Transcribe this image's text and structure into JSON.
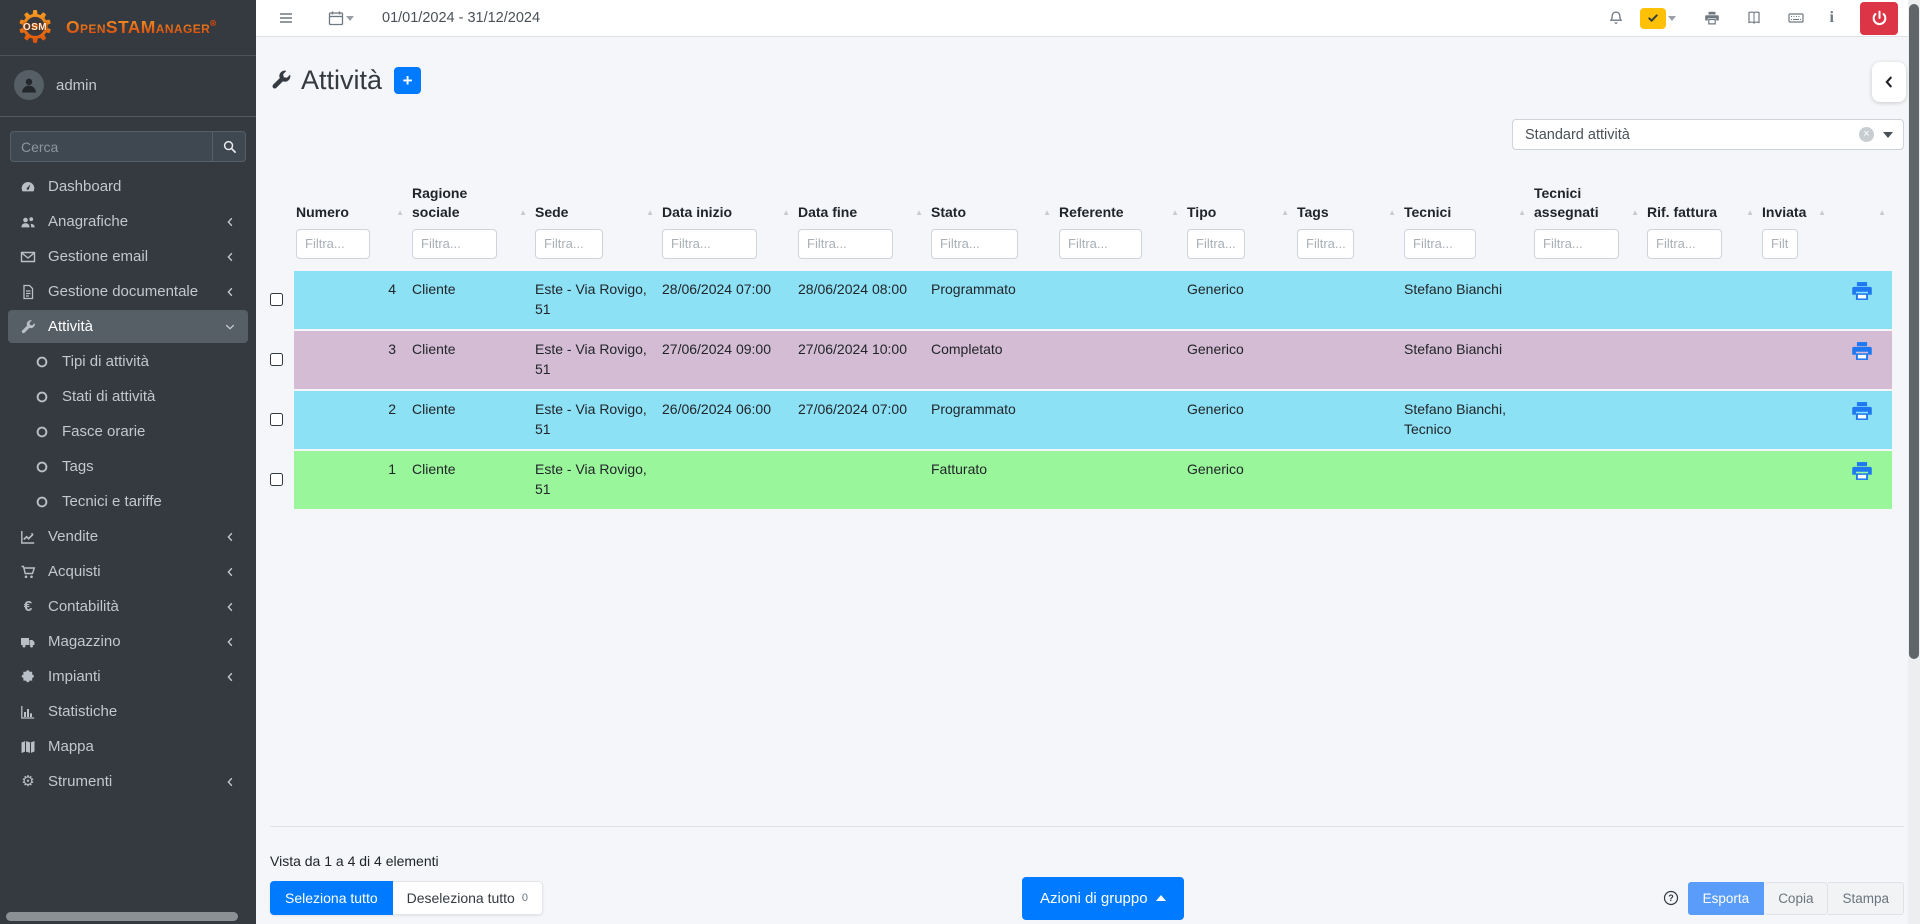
{
  "brand": {
    "name": "OpenSTAManager",
    "logo_monogram": "OSM",
    "registered_mark": "®"
  },
  "user": {
    "name": "admin"
  },
  "topbar": {
    "date_range": "01/01/2024 - 31/12/2024"
  },
  "sidebar": {
    "search_placeholder": "Cerca",
    "items": [
      {
        "label": "Dashboard",
        "icon": "tachometer"
      },
      {
        "label": "Anagrafiche",
        "icon": "users",
        "chevron": "left"
      },
      {
        "label": "Gestione email",
        "icon": "envelope",
        "chevron": "left"
      },
      {
        "label": "Gestione documentale",
        "icon": "file",
        "chevron": "left"
      },
      {
        "label": "Attività",
        "icon": "wrench",
        "chevron": "down",
        "active": true
      },
      {
        "label": "Tipi di attività",
        "icon": "circle",
        "sub": true
      },
      {
        "label": "Stati di attività",
        "icon": "circle",
        "sub": true
      },
      {
        "label": "Fasce orarie",
        "icon": "circle",
        "sub": true
      },
      {
        "label": "Tags",
        "icon": "circle",
        "sub": true
      },
      {
        "label": "Tecnici e tariffe",
        "icon": "circle",
        "sub": true
      },
      {
        "label": "Vendite",
        "icon": "chart-line",
        "chevron": "left"
      },
      {
        "label": "Acquisti",
        "icon": "cart",
        "chevron": "left"
      },
      {
        "label": "Contabilità",
        "icon": "euro",
        "chevron": "left"
      },
      {
        "label": "Magazzino",
        "icon": "truck",
        "chevron": "left"
      },
      {
        "label": "Impianti",
        "icon": "puzzle",
        "chevron": "left"
      },
      {
        "label": "Statistiche",
        "icon": "bar-chart"
      },
      {
        "label": "Mappa",
        "icon": "map"
      },
      {
        "label": "Strumenti",
        "icon": "gear",
        "chevron": "left"
      }
    ]
  },
  "page": {
    "title": "Attività",
    "add_button_label": "+",
    "view_select_value": "Standard attività"
  },
  "table": {
    "columns": [
      {
        "label": "Numero",
        "filter_placeholder": "Filtra...",
        "align": "right"
      },
      {
        "label": "Ragione sociale",
        "filter_placeholder": "Filtra..."
      },
      {
        "label": "Sede",
        "filter_placeholder": "Filtra..."
      },
      {
        "label": "Data inizio",
        "filter_placeholder": "Filtra..."
      },
      {
        "label": "Data fine",
        "filter_placeholder": "Filtra..."
      },
      {
        "label": "Stato",
        "filter_placeholder": "Filtra..."
      },
      {
        "label": "Referente",
        "filter_placeholder": "Filtra..."
      },
      {
        "label": "Tipo",
        "filter_placeholder": "Filtra..."
      },
      {
        "label": "Tags",
        "filter_placeholder": "Filtra..."
      },
      {
        "label": "Tecnici",
        "filter_placeholder": "Filtra..."
      },
      {
        "label": "Tecnici assegnati",
        "filter_placeholder": "Filtra..."
      },
      {
        "label": "Rif. fattura",
        "filter_placeholder": "Filtra..."
      },
      {
        "label": "Inviata",
        "filter_placeholder": "Filtra..."
      }
    ],
    "rows": [
      {
        "state": "programmato",
        "cells": [
          "4",
          "Cliente",
          "Este - Via Rovigo, 51",
          "28/06/2024 07:00",
          "28/06/2024 08:00",
          "Programmato",
          "",
          "Generico",
          "",
          "Stefano Bianchi",
          "",
          "",
          ""
        ]
      },
      {
        "state": "completato",
        "cells": [
          "3",
          "Cliente",
          "Este - Via Rovigo, 51",
          "27/06/2024 09:00",
          "27/06/2024 10:00",
          "Completato",
          "",
          "Generico",
          "",
          "Stefano Bianchi",
          "",
          "",
          ""
        ]
      },
      {
        "state": "programmato",
        "cells": [
          "2",
          "Cliente",
          "Este - Via Rovigo, 51",
          "26/06/2024 06:00",
          "27/06/2024 07:00",
          "Programmato",
          "",
          "Generico",
          "",
          "Stefano Bianchi, Tecnico",
          "",
          "",
          ""
        ]
      },
      {
        "state": "fatturato",
        "cells": [
          "1",
          "Cliente",
          "Este - Via Rovigo, 51",
          "",
          "",
          "Fatturato",
          "",
          "Generico",
          "",
          "",
          "",
          "",
          ""
        ]
      }
    ]
  },
  "footer": {
    "info": "Vista da 1 a 4 di 4 elementi",
    "select_all_label": "Seleziona tutto",
    "deselect_all_label": "Deseleziona tutto",
    "deselect_count": "0",
    "bulk_actions_label": "Azioni di gruppo",
    "export_label": "Esporta",
    "copy_label": "Copia",
    "print_label": "Stampa"
  },
  "colors": {
    "state_programmato": "#8ce1f5",
    "state_completato": "#d4bcd4",
    "state_fatturato": "#9af69b",
    "accent_blue": "#007bff",
    "export_blue": "#5a9cfa",
    "danger_red": "#dc3545",
    "warning_yellow": "#ffc107",
    "print_icon_blue": "#1d78f2",
    "brand_orange": "#e8581f"
  }
}
